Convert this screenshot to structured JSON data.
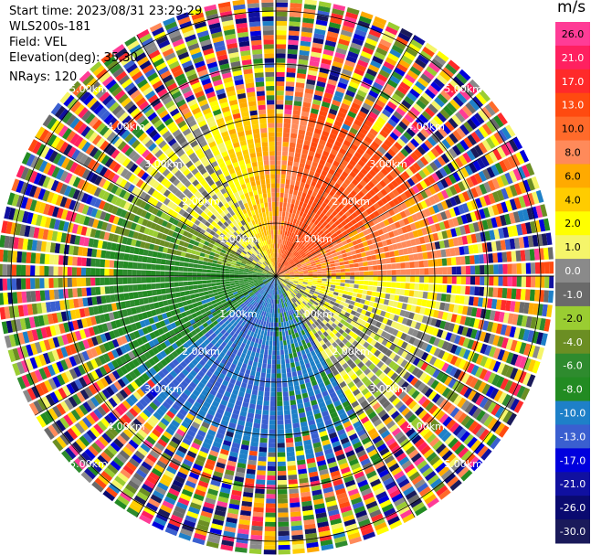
{
  "header": {
    "start_time": "Start time: 2023/08/31 23:29:29",
    "instrument": "WLS200s-181",
    "field": "Field: VEL",
    "elevation": "Elevation(deg): 35.30",
    "nrays": "NRays: 120"
  },
  "colorbar": {
    "unit": "m/s",
    "ticks": [
      "26.0",
      "21.0",
      "17.0",
      "13.0",
      "10.0",
      "8.0",
      "6.0",
      "4.0",
      "2.0",
      "1.0",
      "0.0",
      "-1.0",
      "-2.0",
      "-4.0",
      "-6.0",
      "-8.0",
      "-10.0",
      "-13.0",
      "-17.0",
      "-21.0",
      "-26.0",
      "-30.0"
    ],
    "colors": [
      "#ff3c96",
      "#ff2060",
      "#ff2a2a",
      "#ff4a10",
      "#ff6a2a",
      "#ff8a5a",
      "#ffaa00",
      "#ffcc00",
      "#ffff00",
      "#f5f56a",
      "#8a8a8a",
      "#6a6a6a",
      "#9acd32",
      "#6b8e23",
      "#2e8b2e",
      "#228b22",
      "#1e80c8",
      "#3a5fd0",
      "#0000dd",
      "#1010a0",
      "#0a0a70",
      "#1a1a5a"
    ]
  },
  "chart_data": {
    "type": "polar_ppi",
    "field": "VEL",
    "units": "m/s",
    "nrays": 120,
    "elevation_deg": 35.3,
    "range_rings_km": [
      1.0,
      2.0,
      3.0,
      4.0,
      5.0
    ],
    "ring_labels": [
      "1.00km",
      "2.00km",
      "3.00km",
      "4.00km",
      "5.00km"
    ],
    "spokes_deg": [
      0,
      30,
      60,
      90,
      120,
      150,
      180,
      210,
      240,
      270,
      300,
      330
    ],
    "velocity_pattern": {
      "north_to_east_sector": "positive 6 to 17 m/s (orange/red)",
      "east_sector_near": "positive ~2 m/s (yellow)",
      "northwest_sector": "~0 to -4 m/s (yellow-green)",
      "west_to_south_sector": "negative -6 to -13 m/s (blue/green)",
      "beyond_about_3.5km": "noisy, all velocities"
    }
  }
}
